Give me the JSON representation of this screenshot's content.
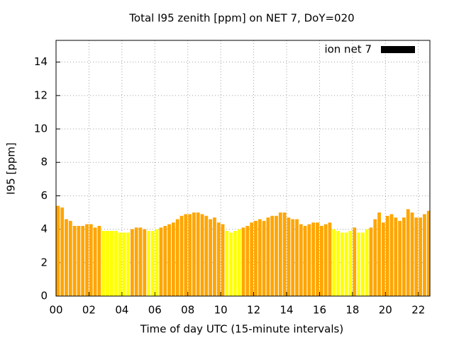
{
  "chart_data": {
    "type": "bar",
    "title": "Total I95 zenith [ppm] on NET 7, DoY=020",
    "x_label": "Time of day UTC (15-minute intervals)",
    "y_label": "I95 [ppm]",
    "x": [
      0,
      0.25,
      0.5,
      0.75,
      1,
      1.25,
      1.5,
      1.75,
      2,
      2.25,
      2.5,
      2.75,
      3,
      3.25,
      3.5,
      3.75,
      4,
      4.25,
      4.5,
      4.75,
      5,
      5.25,
      5.5,
      5.75,
      6,
      6.25,
      6.5,
      6.75,
      7,
      7.25,
      7.5,
      7.75,
      8,
      8.25,
      8.5,
      8.75,
      9,
      9.25,
      9.5,
      9.75,
      10,
      10.25,
      10.5,
      10.75,
      11,
      11.25,
      11.5,
      11.75,
      12,
      12.25,
      12.5,
      12.75,
      13,
      13.25,
      13.5,
      13.75,
      14,
      14.25,
      14.5,
      14.75,
      15,
      15.25,
      15.5,
      15.75,
      16,
      16.25,
      16.5,
      16.75,
      17,
      17.25,
      17.5,
      17.75,
      18,
      18.25,
      18.5,
      18.75,
      19,
      19.25,
      19.5,
      19.75,
      20,
      20.25,
      20.5,
      20.75,
      21,
      21.25,
      21.5,
      21.75,
      22,
      22.25,
      22.5
    ],
    "series": [
      {
        "name": "ion net 7",
        "color": "#000000",
        "values": [
          5.4,
          5.3,
          4.6,
          4.5,
          4.2,
          4.2,
          4.2,
          4.3,
          4.3,
          4.1,
          4.2,
          3.9,
          3.9,
          3.9,
          3.9,
          3.8,
          3.8,
          3.8,
          4.0,
          4.1,
          4.1,
          4.0,
          3.9,
          3.9,
          4.0,
          4.1,
          4.2,
          4.3,
          4.4,
          4.6,
          4.8,
          4.9,
          4.9,
          5.0,
          5.0,
          4.9,
          4.8,
          4.6,
          4.7,
          4.4,
          4.3,
          3.9,
          3.8,
          3.9,
          4.0,
          4.1,
          4.2,
          4.4,
          4.5,
          4.6,
          4.5,
          4.7,
          4.8,
          4.8,
          5.0,
          5.0,
          4.7,
          4.6,
          4.6,
          4.3,
          4.2,
          4.3,
          4.4,
          4.4,
          4.2,
          4.3,
          4.4,
          4.0,
          3.9,
          3.8,
          3.8,
          3.9,
          4.1,
          3.8,
          3.8,
          4.0,
          4.1,
          4.6,
          5.0,
          4.4,
          4.8,
          4.9,
          4.7,
          4.5,
          4.7,
          5.2,
          5.0,
          4.7,
          4.7,
          4.9,
          5.1
        ],
        "colors": [
          "#ffa500",
          "#ffa500",
          "#ffa500",
          "#ffa500",
          "#ffa500",
          "#ffa500",
          "#ffa500",
          "#ffa500",
          "#ffa500",
          "#ffa500",
          "#ffa500",
          "#ffff00",
          "#ffff00",
          "#ffff00",
          "#ffff00",
          "#ffff00",
          "#ffff00",
          "#ffff00",
          "#ffa500",
          "#ffa500",
          "#ffa500",
          "#ffa500",
          "#ffff00",
          "#ffff00",
          "#ffff00",
          "#ffa500",
          "#ffa500",
          "#ffa500",
          "#ffa500",
          "#ffa500",
          "#ffa500",
          "#ffa500",
          "#ffa500",
          "#ffa500",
          "#ffa500",
          "#ffa500",
          "#ffa500",
          "#ffa500",
          "#ffa500",
          "#ffa500",
          "#ffa500",
          "#ffff00",
          "#ffff00",
          "#ffff00",
          "#ffff00",
          "#ffa500",
          "#ffa500",
          "#ffa500",
          "#ffa500",
          "#ffa500",
          "#ffa500",
          "#ffa500",
          "#ffa500",
          "#ffa500",
          "#ffa500",
          "#ffa500",
          "#ffa500",
          "#ffa500",
          "#ffa500",
          "#ffa500",
          "#ffa500",
          "#ffa500",
          "#ffa500",
          "#ffa500",
          "#ffa500",
          "#ffa500",
          "#ffa500",
          "#ffff00",
          "#ffff00",
          "#ffff00",
          "#ffff00",
          "#ffff00",
          "#ffa500",
          "#ffff00",
          "#ffff00",
          "#ffff00",
          "#ffa500",
          "#ffa500",
          "#ffa500",
          "#ffa500",
          "#ffa500",
          "#ffa500",
          "#ffa500",
          "#ffa500",
          "#ffa500",
          "#ffa500",
          "#ffa500",
          "#ffa500",
          "#ffa500",
          "#ffa500",
          "#ffa500"
        ]
      }
    ],
    "xlim": [
      0,
      22.7
    ],
    "ylim": [
      0,
      15.3
    ],
    "xticks": [
      {
        "value": 0,
        "label": "00"
      },
      {
        "value": 2,
        "label": "02"
      },
      {
        "value": 4,
        "label": "04"
      },
      {
        "value": 6,
        "label": "06"
      },
      {
        "value": 8,
        "label": "08"
      },
      {
        "value": 10,
        "label": "10"
      },
      {
        "value": 12,
        "label": "12"
      },
      {
        "value": 14,
        "label": "14"
      },
      {
        "value": 16,
        "label": "16"
      },
      {
        "value": 18,
        "label": "18"
      },
      {
        "value": 20,
        "label": "20"
      },
      {
        "value": 22,
        "label": "22"
      }
    ],
    "yticks": [
      0,
      2,
      4,
      6,
      8,
      10,
      12,
      14
    ],
    "grid": true,
    "legend": "top-right"
  }
}
